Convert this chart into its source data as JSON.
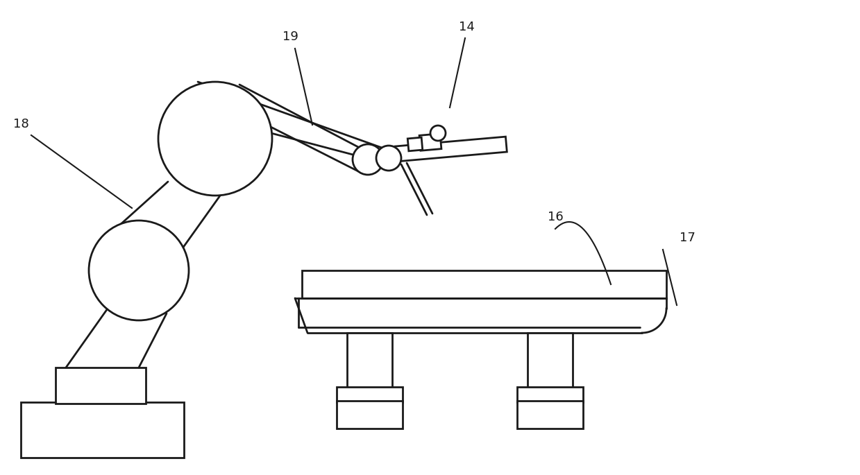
{
  "bg_color": "#ffffff",
  "line_color": "#1a1a1a",
  "line_width": 2.0,
  "label_fontsize": 13
}
